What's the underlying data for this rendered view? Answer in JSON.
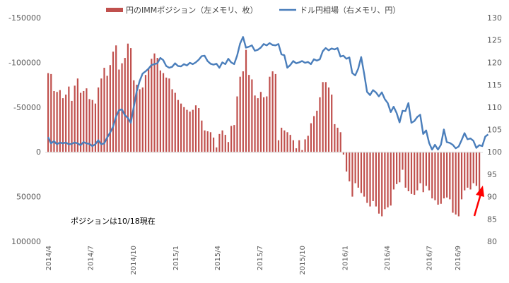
{
  "chart_data": {
    "type": "bar+line",
    "legend": {
      "position": "top",
      "bar_series_name": "円のIMMポジション（左メモリ、枚）",
      "line_series_name": "ドル円相場（右メモリ、円）"
    },
    "annotation": "ポジションは10/18現在",
    "left_axis": {
      "ticks": [
        "-150000",
        "-100000",
        "-50000",
        "0",
        "50000",
        "100000"
      ],
      "range": [
        -150000,
        100000
      ],
      "inverted": true
    },
    "right_axis": {
      "ticks": [
        "130",
        "125",
        "120",
        "115",
        "110",
        "105",
        "100",
        "95",
        "90",
        "85",
        "80"
      ],
      "range": [
        80,
        130
      ]
    },
    "x_axis": {
      "labels": [
        "2014/4",
        "2014/7",
        "2014/10",
        "2015/1",
        "2015/4",
        "2015/7",
        "2015/10",
        "2016/1",
        "2016/4",
        "2016/7",
        "2016/9"
      ],
      "start_date": "2014-04-01",
      "end_date": "2016-10-18",
      "frequency": "weekly"
    },
    "colors": {
      "bars": "#c0504d",
      "line": "#4a7ebb",
      "arrow": "#ff0000"
    },
    "series": [
      {
        "name": "円のIMMポジション（左メモリ、枚）",
        "type": "bar",
        "values": [
          -88000,
          -87000,
          -68000,
          -67000,
          -69000,
          -60000,
          -64000,
          -73000,
          -57000,
          -74000,
          -82000,
          -66000,
          -68000,
          -71000,
          -59000,
          -58000,
          -54000,
          -72000,
          -82000,
          -94000,
          -85000,
          -97000,
          -112000,
          -119000,
          -92000,
          -99000,
          -105000,
          -121000,
          -116000,
          -80000,
          -75000,
          -70000,
          -72000,
          -86000,
          -93000,
          -104000,
          -110000,
          -105000,
          -91000,
          -88000,
          -83000,
          -82000,
          -70000,
          -66000,
          -58000,
          -54000,
          -50000,
          -47000,
          -45000,
          -47000,
          -52000,
          -49000,
          -35000,
          -24000,
          -23000,
          -22000,
          -16000,
          -5000,
          -20000,
          -24000,
          -19000,
          -11000,
          -29000,
          -30000,
          -62000,
          -84000,
          -90000,
          -114000,
          -86000,
          -81000,
          -63000,
          -60000,
          -67000,
          -61000,
          -62000,
          -84000,
          -90000,
          -87000,
          -13000,
          -27000,
          -24000,
          -22000,
          -19000,
          -13000,
          -4000,
          -13000,
          -2000,
          -14000,
          -18000,
          -32000,
          -40000,
          -46000,
          -61000,
          -78000,
          -78000,
          -72000,
          -64000,
          -31000,
          -27000,
          -22000,
          3000,
          22000,
          33000,
          50000,
          35000,
          40000,
          46000,
          50000,
          57000,
          61000,
          55000,
          61000,
          69000,
          72000,
          64000,
          62000,
          60000,
          42000,
          36000,
          34000,
          20000,
          40000,
          44000,
          47000,
          48000,
          43000,
          35000,
          45000,
          38000,
          43000,
          52000,
          54000,
          59000,
          58000,
          52000,
          51000,
          53000,
          68000,
          70000,
          72000,
          53000,
          43000,
          40000,
          42000,
          35000,
          38000,
          47000
        ]
      },
      {
        "name": "ドル円相場（右メモリ、円）",
        "type": "line",
        "values": [
          103.3,
          101.9,
          102.4,
          101.7,
          102.1,
          101.9,
          102.1,
          101.7,
          101.8,
          102.1,
          101.9,
          101.5,
          102.2,
          101.9,
          101.8,
          101.3,
          101.7,
          102.6,
          101.7,
          101.9,
          103.2,
          104.3,
          105.6,
          107.8,
          109.3,
          109.5,
          108.2,
          107.6,
          106.5,
          110.0,
          113.5,
          115.8,
          117.5,
          118.0,
          118.6,
          119.4,
          119.6,
          119.8,
          121.0,
          120.5,
          119.2,
          118.8,
          119.0,
          119.8,
          119.2,
          119.1,
          119.6,
          119.3,
          119.9,
          119.6,
          120.0,
          120.6,
          121.4,
          121.5,
          120.3,
          119.7,
          119.5,
          119.7,
          118.8,
          120.0,
          119.6,
          120.8,
          120.0,
          119.6,
          121.5,
          124.2,
          125.7,
          123.3,
          123.5,
          123.8,
          122.6,
          122.8,
          123.3,
          124.1,
          123.8,
          124.3,
          123.9,
          123.8,
          124.1,
          121.8,
          121.6,
          118.8,
          119.4,
          120.3,
          119.8,
          120.0,
          120.3,
          119.9,
          120.1,
          119.6,
          120.7,
          120.4,
          120.7,
          122.5,
          123.2,
          122.7,
          123.1,
          122.9,
          123.2,
          121.3,
          121.5,
          120.8,
          121.1,
          117.6,
          117.1,
          118.6,
          121.2,
          117.5,
          113.4,
          112.7,
          113.8,
          113.3,
          112.4,
          113.3,
          111.8,
          110.9,
          108.9,
          110.1,
          108.7,
          106.6,
          109.2,
          109.1,
          110.9,
          106.5,
          106.9,
          107.8,
          108.3,
          104.0,
          104.8,
          102.0,
          100.5,
          101.6,
          100.5,
          101.6,
          105.0,
          102.2,
          102.0,
          101.6,
          100.8,
          101.2,
          102.6,
          104.2,
          102.8,
          103.0,
          102.5,
          100.9,
          101.5,
          101.3,
          103.4,
          103.9
        ]
      }
    ]
  }
}
